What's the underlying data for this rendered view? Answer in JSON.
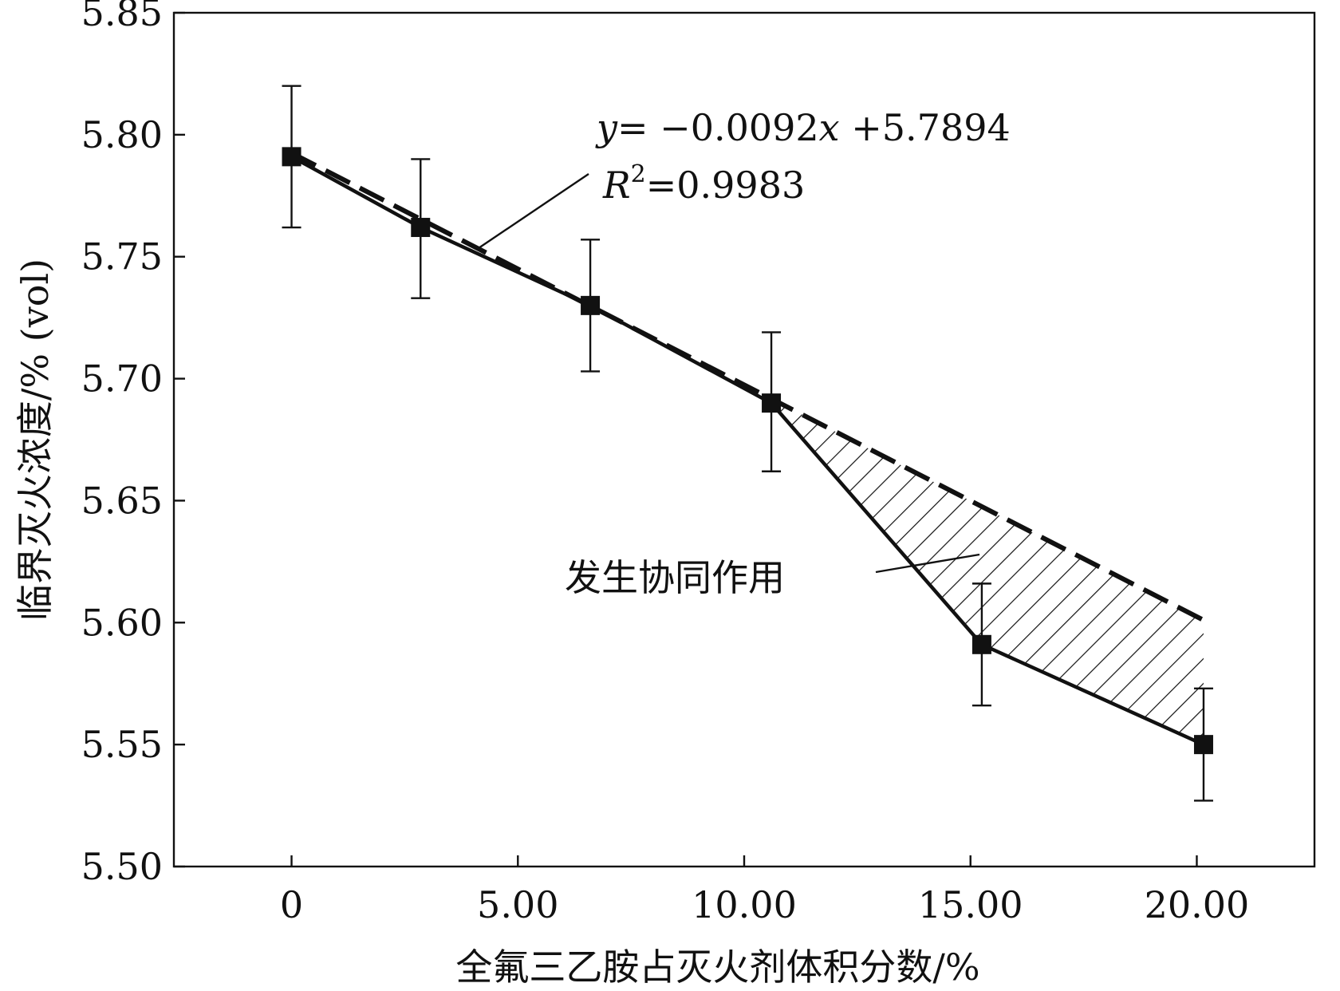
{
  "chart_data": {
    "type": "line",
    "xlabel": "全氟三乙胺占灭火剂体积分数/%",
    "ylabel": "临界灭火浓度/% (vol)",
    "xlim": [
      -2.6,
      22.6
    ],
    "ylim": [
      5.5,
      5.85
    ],
    "x_ticks": [
      0,
      5.0,
      10.0,
      15.0,
      20.0
    ],
    "x_tick_labels": [
      "0",
      "5.00",
      "10.00",
      "15.00",
      "20.00"
    ],
    "y_ticks": [
      5.5,
      5.55,
      5.6,
      5.65,
      5.7,
      5.75,
      5.8,
      5.85
    ],
    "y_tick_labels": [
      "5.50",
      "5.55",
      "5.60",
      "5.65",
      "5.70",
      "5.75",
      "5.80",
      "5.85"
    ],
    "grid": false,
    "series": [
      {
        "style": "solid-with-square-markers",
        "x": [
          0,
          2.85,
          6.6,
          10.6,
          15.25,
          20.15
        ],
        "y": [
          5.791,
          5.762,
          5.73,
          5.69,
          5.591,
          5.55
        ],
        "err_low": [
          5.762,
          5.733,
          5.703,
          5.662,
          5.566,
          5.527
        ],
        "err_high": [
          5.82,
          5.79,
          5.757,
          5.719,
          5.616,
          5.573
        ]
      },
      {
        "style": "dashed-linear-fit",
        "x": [
          0,
          20.15
        ],
        "y": [
          5.7925,
          5.601
        ]
      }
    ],
    "annotations": {
      "equation_italic": "y",
      "equation_rest": "= −0.0092",
      "equation_x": "x",
      "equation_tail": " +5.7894",
      "r2_italic": "R",
      "r2_sup": "2",
      "r2_rest": "=0.9983",
      "synergy_text": "发生协同作用"
    },
    "shaded_region": "hatched area between fit line and data line from x=10.6 to x=20.15"
  }
}
